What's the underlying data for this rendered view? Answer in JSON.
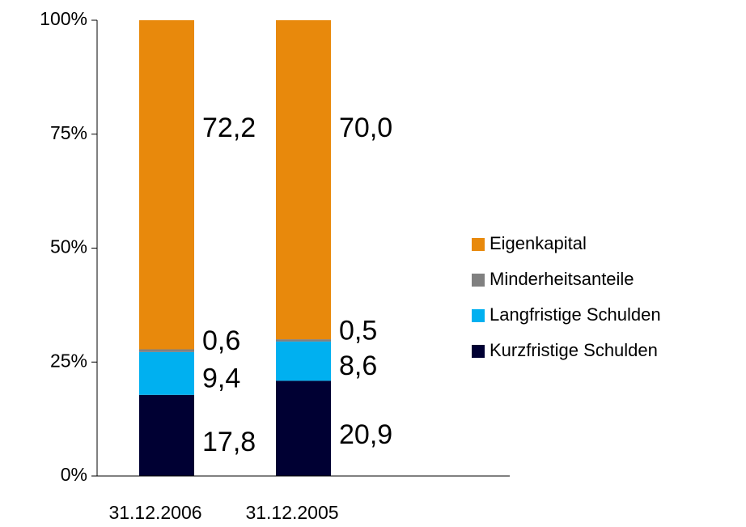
{
  "chart_data": {
    "type": "stacked_bar",
    "categories": [
      "31.12.2006",
      "31.12.2005"
    ],
    "series": [
      {
        "name": "Kurzfristige Schulden",
        "color": "#000033",
        "values": [
          17.8,
          20.9
        ],
        "value_labels": [
          "17,8",
          "20,9"
        ]
      },
      {
        "name": "Langfristige Schulden",
        "color": "#00b0f0",
        "values": [
          9.4,
          8.6
        ],
        "value_labels": [
          "9,4",
          "8,6"
        ]
      },
      {
        "name": "Minderheitsanteile",
        "color": "#808080",
        "values": [
          0.6,
          0.5
        ],
        "value_labels": [
          "0,6",
          "0,5"
        ]
      },
      {
        "name": "Eigenkapital",
        "color": "#e8890c",
        "values": [
          72.2,
          70.0
        ],
        "value_labels": [
          "72,2",
          "70,0"
        ]
      }
    ],
    "ylim": [
      0,
      100
    ],
    "yticks": [
      {
        "value": 0,
        "label": "0%"
      },
      {
        "value": 25,
        "label": "25%"
      },
      {
        "value": 50,
        "label": "50%"
      },
      {
        "value": 75,
        "label": "75%"
      },
      {
        "value": 100,
        "label": "100%"
      }
    ],
    "legend": "right"
  }
}
